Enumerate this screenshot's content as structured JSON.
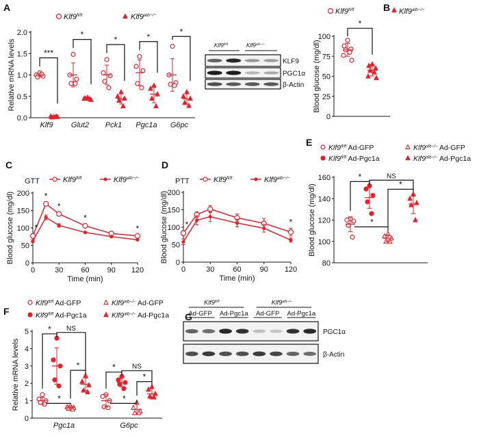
{
  "accent_color": "#e8202a",
  "genotypes": {
    "fl": {
      "gene": "Klf9",
      "sup": "fl/fl"
    },
    "alb": {
      "gene": "Klf9",
      "sup": "alb−/−"
    }
  },
  "chart_data": [
    {
      "panel": "A",
      "type": "scatter",
      "ylabel": "Relative mRNA levels",
      "ylim": [
        0,
        2.0
      ],
      "yticks": [
        "0.0",
        "0.5",
        "1.0",
        "1.5",
        "2.0"
      ],
      "legend": [
        "fl",
        "alb"
      ],
      "categories": [
        "Klf9",
        "Glut2",
        "Pck1",
        "Pgc1a",
        "G6pc"
      ],
      "groups": [
        {
          "category": "Klf9",
          "series": [
            {
              "key": "fl",
              "points": [
                1.05,
                1.0,
                0.97,
                0.95,
                1.02
              ],
              "mean": 1.0,
              "sd": 0.04
            },
            {
              "key": "alb",
              "points": [
                0.02,
                0.03,
                0.02,
                0.01,
                0.03
              ],
              "mean": 0.02,
              "sd": 0.01
            }
          ],
          "sig": "***"
        },
        {
          "category": "Glut2",
          "series": [
            {
              "key": "fl",
              "points": [
                1.48,
                1.0,
                0.9,
                0.8,
                0.8
              ],
              "mean": 1.0,
              "sd": 0.28
            },
            {
              "key": "alb",
              "points": [
                0.47,
                0.45,
                0.42,
                0.45,
                0.44
              ],
              "mean": 0.45,
              "sd": 0.03
            }
          ],
          "sig": "*"
        },
        {
          "category": "Pck1",
          "series": [
            {
              "key": "fl",
              "points": [
                1.36,
                1.05,
                0.98,
                0.85,
                0.7
              ],
              "mean": 1.0,
              "sd": 0.23
            },
            {
              "key": "alb",
              "points": [
                0.6,
                0.5,
                0.45,
                0.4,
                0.27
              ],
              "mean": 0.44,
              "sd": 0.12
            }
          ],
          "sig": "*"
        },
        {
          "category": "Pgc1a",
          "series": [
            {
              "key": "fl",
              "points": [
                1.43,
                1.2,
                1.1,
                0.8,
                0.7
              ],
              "mean": 1.05,
              "sd": 0.3
            },
            {
              "key": "alb",
              "points": [
                0.75,
                0.68,
                0.55,
                0.45,
                0.27
              ],
              "mean": 0.55,
              "sd": 0.2
            }
          ],
          "sig": "*"
        },
        {
          "category": "G6pc",
          "series": [
            {
              "key": "fl",
              "points": [
                1.67,
                1.0,
                0.82,
                0.78,
                0.75
              ],
              "mean": 1.0,
              "sd": 0.38
            },
            {
              "key": "alb",
              "points": [
                0.6,
                0.5,
                0.45,
                0.35,
                0.28
              ],
              "mean": 0.44,
              "sd": 0.12
            }
          ],
          "sig": "*"
        }
      ]
    },
    {
      "panel": "A-blot",
      "type": "blot",
      "lane_groups": [
        {
          "key": "fl",
          "lanes": 2
        },
        {
          "key": "alb",
          "lanes": 2
        }
      ],
      "rows": [
        {
          "label": "KLF9",
          "intensity": [
            0.6,
            0.9,
            0.35,
            0.3
          ]
        },
        {
          "label": "PGC1α",
          "intensity": [
            0.95,
            0.95,
            0.2,
            0.25
          ]
        },
        {
          "label": "β-Actin",
          "intensity": [
            0.7,
            0.65,
            0.65,
            0.65
          ]
        }
      ]
    },
    {
      "panel": "B",
      "type": "scatter",
      "ylabel": "Blood glucose (mg/dl)",
      "ylim": [
        0,
        110
      ],
      "yticks": [
        "0",
        "25",
        "50",
        "75",
        "100"
      ],
      "legend": [
        "fl",
        "alb"
      ],
      "groups": [
        {
          "series": [
            {
              "key": "fl",
              "points": [
                95,
                88,
                84,
                83,
                80,
                76,
                70
              ],
              "mean": 83,
              "sd": 8
            },
            {
              "key": "alb",
              "points": [
                65,
                63,
                60,
                57,
                55,
                50,
                48
              ],
              "mean": 57.5,
              "sd": 7
            }
          ],
          "sig": "*"
        }
      ]
    },
    {
      "panel": "C",
      "type": "line",
      "title": "GTT",
      "xlabel": "Time (min)",
      "ylabel": "Blood glucose (mg/dl)",
      "x": [
        0,
        15,
        30,
        60,
        90,
        120
      ],
      "xticks": [
        "0",
        "30",
        "60",
        "90",
        "120"
      ],
      "ylim": [
        0,
        200
      ],
      "yticks": [
        "0",
        "50",
        "100",
        "150",
        "200"
      ],
      "series": [
        {
          "key": "fl",
          "marker": "open-circle",
          "values": [
            77,
            169,
            140,
            106,
            84,
            77
          ],
          "err": [
            6,
            5,
            4,
            5,
            3,
            3
          ]
        },
        {
          "key": "alb",
          "marker": "filled-circle",
          "values": [
            62,
            130,
            107,
            87,
            75,
            66
          ],
          "err": [
            4,
            7,
            5,
            2,
            2,
            2
          ]
        }
      ],
      "sig_at": [
        0,
        15,
        30,
        60,
        120
      ]
    },
    {
      "panel": "D",
      "type": "line",
      "title": "PTT",
      "xlabel": "Time (min)",
      "ylabel": "Blood glucose (mg/dl)",
      "x": [
        0,
        15,
        30,
        60,
        90,
        120
      ],
      "xticks": [
        "0",
        "30",
        "60",
        "90",
        "120"
      ],
      "ylim": [
        0,
        200
      ],
      "yticks": [
        "0",
        "50",
        "100",
        "150",
        "200"
      ],
      "series": [
        {
          "key": "fl",
          "marker": "open-circle",
          "values": [
            83,
            136,
            152,
            127,
            111,
            86
          ],
          "err": [
            7,
            8,
            10,
            11,
            14,
            11
          ]
        },
        {
          "key": "alb",
          "marker": "filled-circle",
          "values": [
            58,
            120,
            130,
            112,
            97,
            63
          ],
          "err": [
            8,
            13,
            14,
            11,
            11,
            6
          ]
        }
      ],
      "sig_at": [
        0,
        120
      ]
    },
    {
      "panel": "E",
      "type": "scatter",
      "ylabel": "Blood glucose (mg/dl)",
      "ylim": [
        80,
        160
      ],
      "yticks": [
        "80",
        "100",
        "120",
        "140",
        "160"
      ],
      "legend_items": [
        {
          "key": "fl",
          "treatment": "Ad-GFP",
          "marker": "open-circle"
        },
        {
          "key": "alb",
          "treatment": "Ad-GFP",
          "marker": "open-triangle"
        },
        {
          "key": "fl",
          "treatment": "Ad-Pgc1a",
          "marker": "filled-circle"
        },
        {
          "key": "alb",
          "treatment": "Ad-Pgc1a",
          "marker": "filled-triangle"
        }
      ],
      "groups": [
        {
          "series": [
            {
              "marker": "open-circle",
              "points": [
                121,
                120,
                119,
                115,
                104
              ],
              "mean": 116,
              "sd": 7
            },
            {
              "marker": "filled-circle",
              "points": [
                152,
                149,
                143,
                137,
                126
              ],
              "mean": 141,
              "sd": 10
            },
            {
              "marker": "open-triangle",
              "points": [
                107,
                105,
                103,
                100,
                100
              ],
              "mean": 103,
              "sd": 3
            },
            {
              "marker": "filled-triangle",
              "points": [
                144,
                140,
                136,
                134,
                120
              ],
              "mean": 135,
              "sd": 9
            }
          ],
          "comparisons": [
            [
              0,
              1,
              "*"
            ],
            [
              1,
              3,
              "NS"
            ],
            [
              0,
              2,
              "*"
            ],
            [
              2,
              3,
              "*"
            ]
          ]
        }
      ]
    },
    {
      "panel": "F",
      "type": "scatter",
      "ylabel": "Relative mRNA levels",
      "ylim": [
        0,
        5
      ],
      "yticks": [
        "0",
        "1",
        "2",
        "3",
        "4",
        "5"
      ],
      "categories": [
        "Pgc1a",
        "G6pc"
      ],
      "legend_items": [
        {
          "key": "fl",
          "treatment": "Ad-GFP",
          "marker": "open-circle"
        },
        {
          "key": "alb",
          "treatment": "Ad-GFP",
          "marker": "open-triangle"
        },
        {
          "key": "fl",
          "treatment": "Ad-Pgc1a",
          "marker": "filled-circle"
        },
        {
          "key": "alb",
          "treatment": "Ad-Pgc1a",
          "marker": "filled-triangle"
        }
      ],
      "groups": [
        {
          "category": "Pgc1a",
          "series": [
            {
              "marker": "open-circle",
              "points": [
                1.35,
                1.1,
                1.0,
                0.9,
                0.8
              ],
              "mean": 1.0,
              "sd": 0.2
            },
            {
              "marker": "filled-circle",
              "points": [
                4.6,
                3.35,
                3.0,
                2.2,
                1.85
              ],
              "mean": 3.0,
              "sd": 1.05
            },
            {
              "marker": "open-triangle",
              "points": [
                0.72,
                0.65,
                0.6,
                0.55,
                0.5
              ],
              "mean": 0.62,
              "sd": 0.08
            },
            {
              "marker": "filled-triangle",
              "points": [
                2.45,
                2.1,
                1.9,
                1.6,
                1.5
              ],
              "mean": 1.95,
              "sd": 0.35
            }
          ],
          "comparisons": [
            [
              0,
              1,
              "*"
            ],
            [
              1,
              3,
              "NS"
            ],
            [
              0,
              2,
              "*"
            ],
            [
              2,
              3,
              "*"
            ]
          ]
        },
        {
          "category": "G6pc",
          "series": [
            {
              "marker": "open-circle",
              "points": [
                1.35,
                1.25,
                1.0,
                0.65,
                0.6
              ],
              "mean": 1.0,
              "sd": 0.35
            },
            {
              "marker": "filled-circle",
              "points": [
                2.4,
                2.2,
                2.05,
                1.95,
                1.7
              ],
              "mean": 2.05,
              "sd": 0.25
            },
            {
              "marker": "open-triangle",
              "points": [
                0.9,
                0.6,
                0.4,
                0.3,
                0.3
              ],
              "mean": 0.5,
              "sd": 0.3
            },
            {
              "marker": "filled-triangle",
              "points": [
                1.8,
                1.65,
                1.4,
                1.25,
                1.2
              ],
              "mean": 1.4,
              "sd": 0.3
            }
          ],
          "comparisons": [
            [
              0,
              1,
              "*"
            ],
            [
              1,
              3,
              "NS"
            ],
            [
              0,
              2,
              "*"
            ],
            [
              2,
              3,
              "*"
            ]
          ]
        }
      ]
    },
    {
      "panel": "G",
      "type": "blot",
      "lane_groups": [
        {
          "key": "fl",
          "lanes": 4
        },
        {
          "key": "alb",
          "lanes": 4
        }
      ],
      "treatments": [
        "Ad-GFP",
        "Ad-Pgc1a",
        "Ad-GFP",
        "Ad-Pgc1a"
      ],
      "rows": [
        {
          "label": "PGC1α",
          "intensity": [
            0.6,
            0.55,
            0.9,
            0.85,
            0.15,
            0.12,
            0.85,
            0.9
          ]
        },
        {
          "label": "β-Actin",
          "intensity": [
            0.7,
            0.8,
            0.7,
            0.7,
            0.8,
            0.75,
            0.6,
            0.55
          ]
        }
      ]
    }
  ]
}
